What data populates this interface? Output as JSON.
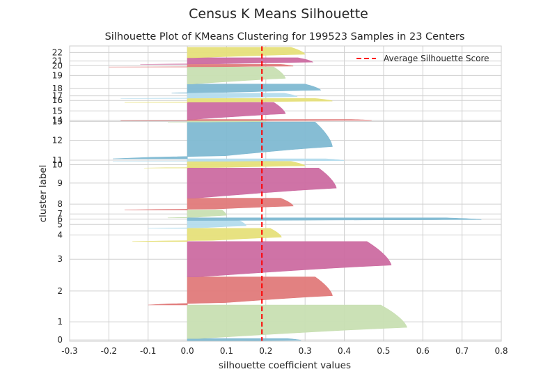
{
  "figure_title": "Census K Means Silhouette",
  "chart_data": {
    "type": "area",
    "title": "Silhouette Plot of KMeans Clustering for 199523 Samples in 23 Centers",
    "xlabel": "silhouette coefficient values",
    "ylabel": "cluster label",
    "xlim": [
      -0.3,
      0.8
    ],
    "xticks": [
      -0.3,
      -0.2,
      -0.1,
      0.0,
      0.1,
      0.2,
      0.3,
      0.4,
      0.5,
      0.6,
      0.7,
      0.8
    ],
    "xtick_labels": [
      "-0.3",
      "-0.2",
      "-0.1",
      "0.0",
      "0.1",
      "0.2",
      "0.3",
      "0.4",
      "0.5",
      "0.6",
      "0.7",
      "0.8"
    ],
    "grid": true,
    "legend": {
      "position": "top-right",
      "entries": [
        {
          "label": "Average Silhouette Score",
          "color": "#ff0000",
          "style": "dashed"
        }
      ]
    },
    "average_silhouette_score": 0.19,
    "colors": {
      "blue": "#7fb9d2",
      "red": "#e07a7a",
      "green": "#c8dfb2",
      "purple": "#cc6ca1",
      "yellow": "#e6e07a",
      "lightblue": "#b4dced",
      "avg_line": "#ff0000",
      "grid": "#d0d0d0",
      "spine": "#cccccc"
    },
    "clusters": [
      {
        "label": "0",
        "y_lower": 0,
        "y_upper": 1000,
        "max": 0.29,
        "min": -0.07,
        "color": "blue"
      },
      {
        "label": "1",
        "y_lower": 1000,
        "y_upper": 13800,
        "max": 0.56,
        "min": 0.0,
        "color": "green"
      },
      {
        "label": "2",
        "y_lower": 13800,
        "y_upper": 24500,
        "max": 0.37,
        "min": -0.1,
        "color": "red"
      },
      {
        "label": "3",
        "y_lower": 24500,
        "y_upper": 38000,
        "max": 0.52,
        "min": 0.0,
        "color": "purple"
      },
      {
        "label": "4",
        "y_lower": 38000,
        "y_upper": 43000,
        "max": 0.24,
        "min": -0.14,
        "color": "yellow"
      },
      {
        "label": "5",
        "y_lower": 43000,
        "y_upper": 46000,
        "max": 0.15,
        "min": -0.1,
        "color": "lightblue"
      },
      {
        "label": "6",
        "y_lower": 46000,
        "y_upper": 47000,
        "max": 0.75,
        "min": 0.0,
        "color": "blue"
      },
      {
        "label": "7",
        "y_lower": 47000,
        "y_upper": 50000,
        "max": 0.1,
        "min": -0.05,
        "color": "green"
      },
      {
        "label": "8",
        "y_lower": 50000,
        "y_upper": 54500,
        "max": 0.27,
        "min": -0.16,
        "color": "red"
      },
      {
        "label": "9",
        "y_lower": 54500,
        "y_upper": 66000,
        "max": 0.38,
        "min": 0.0,
        "color": "purple"
      },
      {
        "label": "10",
        "y_lower": 66000,
        "y_upper": 68500,
        "max": 0.3,
        "min": -0.11,
        "color": "yellow"
      },
      {
        "label": "11",
        "y_lower": 68500,
        "y_upper": 69500,
        "max": 0.4,
        "min": -0.19,
        "color": "lightblue"
      },
      {
        "label": "12",
        "y_lower": 69500,
        "y_upper": 83500,
        "max": 0.37,
        "min": -0.19,
        "color": "blue"
      },
      {
        "label": "13",
        "y_lower": 83500,
        "y_upper": 84000,
        "max": 0.2,
        "min": -0.05,
        "color": "green"
      },
      {
        "label": "14",
        "y_lower": 84000,
        "y_upper": 84500,
        "max": 0.47,
        "min": -0.17,
        "color": "red"
      },
      {
        "label": "15",
        "y_lower": 84500,
        "y_upper": 91000,
        "max": 0.25,
        "min": 0.0,
        "color": "purple"
      },
      {
        "label": "16",
        "y_lower": 91000,
        "y_upper": 92500,
        "max": 0.37,
        "min": -0.16,
        "color": "yellow"
      },
      {
        "label": "17",
        "y_lower": 92500,
        "y_upper": 94500,
        "max": 0.28,
        "min": -0.17,
        "color": "lightblue"
      },
      {
        "label": "18",
        "y_lower": 94500,
        "y_upper": 98000,
        "max": 0.34,
        "min": -0.04,
        "color": "blue"
      },
      {
        "label": "19",
        "y_lower": 98000,
        "y_upper": 104500,
        "max": 0.25,
        "min": 0.0,
        "color": "green"
      },
      {
        "label": "20",
        "y_lower": 104500,
        "y_upper": 105500,
        "max": 0.27,
        "min": -0.2,
        "color": "red"
      },
      {
        "label": "21",
        "y_lower": 105500,
        "y_upper": 108000,
        "max": 0.32,
        "min": -0.12,
        "color": "purple"
      },
      {
        "label": "22",
        "y_lower": 108000,
        "y_upper": 112000,
        "max": 0.3,
        "min": 0.0,
        "color": "yellow"
      }
    ],
    "ylim": [
      0,
      112500
    ]
  }
}
